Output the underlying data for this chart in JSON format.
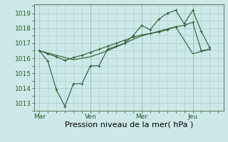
{
  "background_color": "#cce8e8",
  "grid_color": "#aacccc",
  "line_color": "#2d5a2d",
  "xlabel": "Pression niveau de la mer( hPa )",
  "xtick_labels": [
    "Mar",
    "Ven",
    "Mer",
    "Jeu"
  ],
  "xtick_positions": [
    0,
    3,
    6,
    9
  ],
  "ytick_values": [
    1013,
    1014,
    1015,
    1016,
    1017,
    1018,
    1019
  ],
  "ylim": [
    1012.5,
    1019.6
  ],
  "xlim": [
    -0.3,
    10.8
  ],
  "series1_x": [
    0,
    0.5,
    1.0,
    1.5,
    2.0,
    2.5,
    3.0,
    3.5,
    4.0,
    4.5,
    5.0,
    5.5,
    6.0,
    6.5,
    7.0,
    7.5,
    8.0,
    8.5,
    9.0,
    9.5,
    10.0
  ],
  "series1_y": [
    1016.5,
    1015.8,
    1013.9,
    1012.8,
    1014.3,
    1014.3,
    1015.5,
    1015.5,
    1016.6,
    1016.8,
    1017.0,
    1017.5,
    1018.2,
    1017.9,
    1018.6,
    1019.0,
    1019.2,
    1018.3,
    1019.2,
    1017.8,
    1016.7
  ],
  "series2_x": [
    0,
    1.0,
    2.0,
    3.0,
    4.0,
    5.0,
    6.0,
    7.0,
    8.0,
    9.0,
    10.0
  ],
  "series2_y": [
    1016.5,
    1016.2,
    1015.9,
    1016.1,
    1016.5,
    1017.0,
    1017.5,
    1017.8,
    1018.1,
    1016.3,
    1016.6
  ],
  "series3_x": [
    0,
    0.5,
    1.0,
    1.5,
    2.0,
    2.5,
    3.0,
    3.5,
    4.0,
    4.5,
    5.0,
    5.5,
    6.0,
    6.5,
    7.0,
    7.5,
    8.0,
    8.5,
    9.0,
    9.5,
    10.0
  ],
  "series3_y": [
    1016.5,
    1016.3,
    1016.1,
    1015.85,
    1016.05,
    1016.2,
    1016.4,
    1016.6,
    1016.8,
    1017.0,
    1017.2,
    1017.4,
    1017.55,
    1017.65,
    1017.75,
    1017.9,
    1018.1,
    1018.2,
    1018.4,
    1016.5,
    1016.6
  ],
  "vline_positions": [
    3,
    6,
    9
  ],
  "fontsize_xlabel": 8,
  "fontsize_ticks": 6.5
}
